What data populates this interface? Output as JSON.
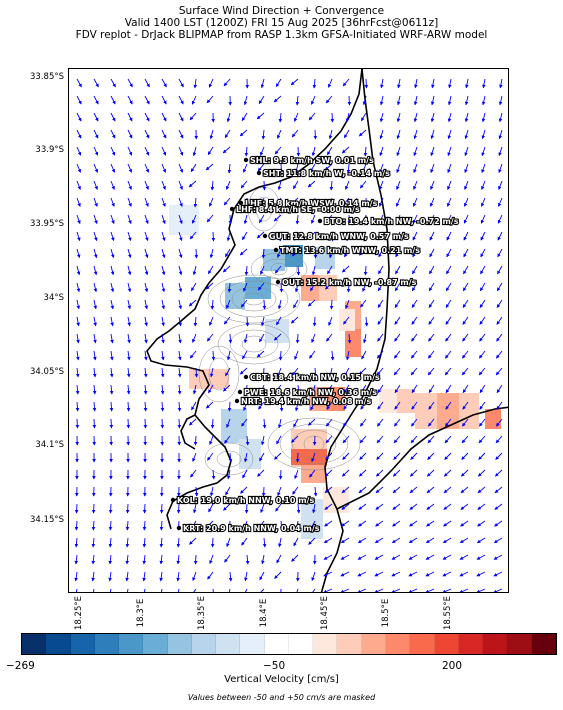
{
  "title_lines": [
    "Surface Wind Direction + Convergence",
    "Valid 1400 LST (1200Z) FRI 15 Aug 2025 [36hrFcst@0611z]",
    "FDV replot - DrJack BLIPMAP from RASP 1.3km GFSA-Initiated WRF-ARW model"
  ],
  "y_labels": [
    "33.85°S",
    "33.9°S",
    "33.95°S",
    "34°S",
    "34.05°S",
    "34.1°S",
    "34.15°S"
  ],
  "x_labels": [
    "18.25°E",
    "18.3°E",
    "18.35°E",
    "18.4°E",
    "18.45°E",
    "18.5°E",
    "18.55°E"
  ],
  "sites": [
    {
      "label": "SHL: 9.3 km/h SW, 0.01 m/s"
    },
    {
      "label": "SHT: 11.8 km/h W, -0.14 m/s"
    },
    {
      "label": "LHE: 5.8 km/h WSW, 0.14 m/s"
    },
    {
      "label": "LHF: 8.4 km/h SE, -0.00 m/s"
    },
    {
      "label": "BTO: 19.4 km/h NW, -0.72 m/s"
    },
    {
      "label": "GUT: 12.8 km/h WNW, 0.57 m/s"
    },
    {
      "label": "TMT: 13.6 km/h WNW, 0.21 m/s"
    },
    {
      "label": "OUT: 15.2 km/h NW, -0.87 m/s"
    },
    {
      "label": "CBT: 18.4 km/h NW, 0.15 m/s"
    },
    {
      "label": "PWE: 18.6 km/h NW, 0.36 m/s"
    },
    {
      "label": "NRT: 19.4 km/h NW, 0.08 m/s"
    },
    {
      "label": "KOL: 19.0 km/h NNW, 0.10 m/s"
    },
    {
      "label": "KRT: 20.9 km/h NNW, 0.04 m/s"
    }
  ],
  "colorbar": {
    "colors": [
      "#08306b",
      "#084a91",
      "#1764ab",
      "#2e7ebc",
      "#4a98c9",
      "#6aaed6",
      "#94c4df",
      "#b7d4ea",
      "#d0e1f2",
      "#e5eff9",
      "#ffffff",
      "#ffffff",
      "#fee7dc",
      "#fdcdb9",
      "#fcab8f",
      "#fc8a6a",
      "#f9694c",
      "#ef4533",
      "#d92723",
      "#bb151a",
      "#9c0d14",
      "#67000d"
    ],
    "tick_labels": [
      "−269",
      "−50",
      "200"
    ],
    "label": "Vertical Velocity [cm/s]",
    "note": "Values between -50 and +50 cm/s are masked"
  },
  "map_colors": {
    "arrow": "#0000ff",
    "coast": "#000000",
    "contour": "#8a8a8a"
  }
}
